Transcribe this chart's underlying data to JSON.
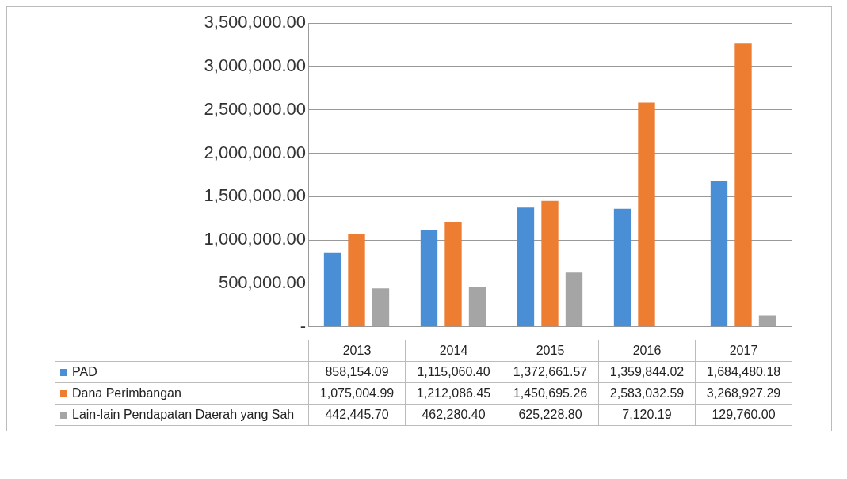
{
  "chart_data": {
    "type": "bar",
    "categories": [
      "2013",
      "2014",
      "2015",
      "2016",
      "2017"
    ],
    "series": [
      {
        "name": "PAD",
        "color": "#4a8fd6",
        "values": [
          858154.09,
          1115060.4,
          1372661.57,
          1359844.02,
          1684480.18
        ],
        "value_labels": [
          "858,154.09",
          "1,115,060.40",
          "1,372,661.57",
          "1,359,844.02",
          "1,684,480.18"
        ]
      },
      {
        "name": "Dana Perimbangan",
        "color": "#ed7d31",
        "values": [
          1075004.99,
          1212086.45,
          1450695.26,
          2583032.59,
          3268927.29
        ],
        "value_labels": [
          "1,075,004.99",
          "1,212,086.45",
          "1,450,695.26",
          "2,583,032.59",
          "3,268,927.29"
        ]
      },
      {
        "name": "Lain-lain Pendapatan Daerah yang Sah",
        "color": "#a5a5a5",
        "values": [
          442445.7,
          462280.4,
          625228.8,
          7120.19,
          129760.0
        ],
        "value_labels": [
          "442,445.70",
          "462,280.40",
          "625,228.80",
          "7,120.19",
          "129,760.00"
        ]
      }
    ],
    "ylim": [
      0,
      3500000
    ],
    "yticks": [
      {
        "value": 0,
        "label": "-"
      },
      {
        "value": 500000,
        "label": "500,000.00"
      },
      {
        "value": 1000000,
        "label": "1,000,000.00"
      },
      {
        "value": 1500000,
        "label": "1,500,000.00"
      },
      {
        "value": 2000000,
        "label": "2,000,000.00"
      },
      {
        "value": 2500000,
        "label": "2,500,000.00"
      },
      {
        "value": 3000000,
        "label": "3,000,000.00"
      },
      {
        "value": 3500000,
        "label": "3,500,000.00"
      }
    ],
    "grid": "y",
    "legend": "bottom"
  }
}
